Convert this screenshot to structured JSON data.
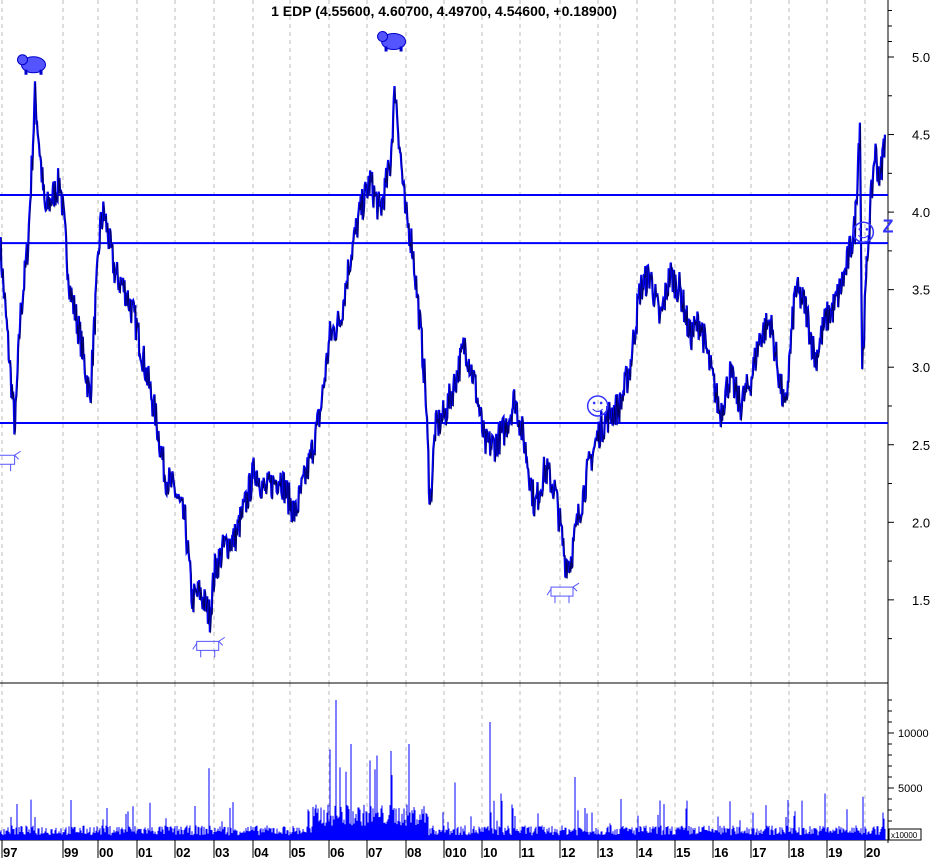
{
  "chart_data": [
    {
      "type": "line",
      "title": "1 EDP (4.55600, 4.60700, 4.49700, 4.54600, +0.18900)",
      "xlim": [
        1997.38,
        2020.44
      ],
      "ylim": [
        0.95,
        5.35
      ],
      "grid": {
        "vertical": true,
        "horizontal": false,
        "style": "dashed"
      },
      "y_ticks": [
        "1.5",
        "2.0",
        "2.5",
        "3.0",
        "3.5",
        "4.0",
        "4.5",
        "5.0"
      ],
      "x_tick_labels": [
        "97",
        "99",
        "00",
        "01",
        "02",
        "03",
        "04",
        "05",
        "06",
        "07",
        "08",
        "010",
        "10",
        "11",
        "12",
        "13",
        "14",
        "15",
        "16",
        "17",
        "18",
        "19",
        "20"
      ],
      "horizontal_lines": [
        4.11,
        3.8,
        2.64
      ],
      "series": [
        {
          "color": "#0000ff",
          "x": [
            1997.38,
            1997.64,
            1997.77,
            1997.9,
            1998.11,
            1998.29,
            1998.55,
            1998.94,
            1999.2,
            1999.46,
            1999.72,
            1999.98,
            2000.08,
            2000.37,
            2000.63,
            2000.89,
            2001.15,
            2001.41,
            2001.67,
            2001.93,
            2002.19,
            2002.37,
            2002.57,
            2002.83,
            2002.96,
            2003.22,
            2003.48,
            2003.74,
            2004.0,
            2004.26,
            2004.65,
            2005.04,
            2005.43,
            2005.69,
            2005.95,
            2006.21,
            2006.47,
            2006.73,
            2006.99,
            2007.25,
            2007.51,
            2007.64,
            2007.77,
            2007.9,
            2008.08,
            2008.24,
            2008.42,
            2008.55,
            2008.68,
            2008.94,
            2009.19,
            2009.45,
            2009.71,
            2009.97,
            2010.23,
            2010.49,
            2010.75,
            2011.01,
            2011.27,
            2011.54,
            2011.8,
            2012.06,
            2012.19,
            2012.45,
            2012.71,
            2012.96,
            2013.22,
            2013.48,
            2013.74,
            2014.0,
            2014.26,
            2014.52,
            2014.78,
            2015.04,
            2015.3,
            2015.56,
            2015.82,
            2016.08,
            2016.34,
            2016.6,
            2016.86,
            2017.12,
            2017.38,
            2017.64,
            2017.77,
            2018.03,
            2018.29,
            2018.55,
            2018.81,
            2019.06,
            2019.32,
            2019.58,
            2019.71,
            2019.77,
            2019.92,
            2020.1,
            2020.23,
            2020.36
          ],
          "y": [
            3.8,
            3.0,
            2.6,
            3.3,
            3.8,
            4.75,
            4.0,
            4.2,
            3.5,
            3.2,
            2.8,
            3.9,
            4.0,
            3.6,
            3.5,
            3.3,
            3.0,
            2.7,
            2.3,
            2.2,
            2.0,
            1.5,
            1.55,
            1.4,
            1.7,
            1.85,
            1.9,
            2.1,
            2.35,
            2.2,
            2.3,
            2.05,
            2.4,
            2.7,
            3.2,
            3.3,
            3.7,
            4.0,
            4.2,
            4.0,
            4.3,
            4.8,
            4.4,
            4.0,
            3.8,
            3.4,
            2.9,
            2.1,
            2.6,
            2.7,
            2.9,
            3.15,
            2.9,
            2.5,
            2.5,
            2.6,
            2.8,
            2.5,
            2.1,
            2.35,
            2.2,
            1.75,
            1.75,
            2.1,
            2.4,
            2.6,
            2.7,
            2.75,
            3.0,
            3.5,
            3.6,
            3.3,
            3.6,
            3.5,
            3.2,
            3.3,
            3.0,
            2.7,
            2.95,
            2.75,
            2.9,
            3.2,
            3.3,
            2.9,
            2.7,
            3.5,
            3.4,
            3.05,
            3.3,
            3.4,
            3.6,
            3.9,
            4.6,
            3.0,
            3.8,
            4.4,
            4.2,
            4.5
          ]
        }
      ],
      "annotations": [
        {
          "icon": "bear-icon",
          "x": 1998.25,
          "y": 4.95
        },
        {
          "icon": "bear-icon",
          "x": 2007.6,
          "y": 5.1
        },
        {
          "icon": "bull-icon",
          "x": 1997.5,
          "y": 2.4
        },
        {
          "icon": "bull-icon",
          "x": 2002.8,
          "y": 1.2
        },
        {
          "icon": "bull-icon",
          "x": 2012.0,
          "y": 1.55
        },
        {
          "icon": "smiley-icon",
          "x": 2012.9,
          "y": 2.75
        },
        {
          "icon": "smiley-circle-icon",
          "x": 2019.8,
          "y": 3.87
        },
        {
          "label": "Z",
          "x": 2020.4,
          "y": 3.9
        }
      ]
    },
    {
      "type": "bar",
      "y_ticks": [
        "5000",
        "10000"
      ],
      "unit_label": "x10000",
      "color": "#0000ff",
      "ylim": [
        0,
        14000
      ],
      "notable_spikes": {
        "x": [
          2002.8,
          2005.95,
          2006.1,
          2006.5,
          2007.0,
          2008.0,
          2009.2,
          2010.1,
          2010.4,
          2012.3,
          2013.5,
          2018.8,
          2019.8
        ],
        "y": [
          6800,
          8500,
          13000,
          9000,
          7500,
          9000,
          5500,
          11000,
          4500,
          6000,
          4000,
          4500,
          4200
        ]
      }
    }
  ]
}
